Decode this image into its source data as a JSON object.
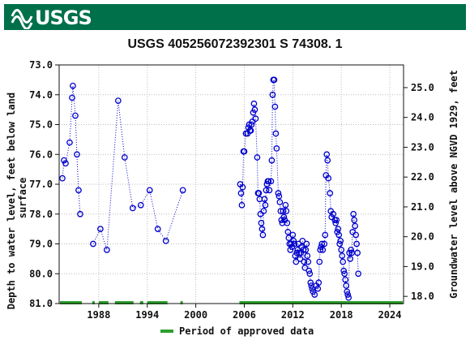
{
  "header": {
    "logo_text": "USGS",
    "brand_color": "#00704a"
  },
  "chart_data": {
    "type": "scatter",
    "title": "USGS 405256072392301 S 74308. 1",
    "ylabel_left": "Depth to water level, feet below land surface",
    "ylabel_left_lines": [
      "Depth to water level, feet below land",
      "surface"
    ],
    "ylabel_right": "Groundwater level above NGVD 1929, feet",
    "x_ticks": [
      "1988",
      "1994",
      "2000",
      "2006",
      "2012",
      "2018",
      "2024"
    ],
    "x_tick_values": [
      1988,
      1994,
      2000,
      2006,
      2012,
      2018,
      2024
    ],
    "xlim": [
      1983.1,
      2025.7
    ],
    "ylim_left": [
      73.0,
      81.0
    ],
    "y_ticks_left": [
      "73.0",
      "74.0",
      "75.0",
      "76.0",
      "77.0",
      "78.0",
      "79.0",
      "80.0",
      "81.0"
    ],
    "ylim_right": [
      25.5,
      17.5
    ],
    "y_ticks_right": [
      "25.0",
      "24.0",
      "23.0",
      "22.0",
      "21.0",
      "20.0",
      "19.0",
      "18.0"
    ],
    "right_axis_offset": 98.76,
    "grid": true,
    "marker_color": "#0000cc",
    "approved_color": "#2ca02c",
    "legend": {
      "label": "Period of approved data",
      "position": "bottom"
    },
    "series": [
      {
        "points": [
          [
            1983.5,
            76.8
          ],
          [
            1983.7,
            76.2
          ],
          [
            1983.9,
            76.3
          ],
          [
            1984.4,
            75.6
          ],
          [
            1984.7,
            74.1
          ],
          [
            1984.8,
            73.7
          ],
          [
            1985.1,
            74.7
          ],
          [
            1985.3,
            76.0
          ],
          [
            1985.5,
            77.2
          ],
          [
            1985.7,
            78.0
          ],
          [
            1987.3,
            79.0
          ],
          [
            1988.2,
            78.5
          ],
          [
            1989.0,
            79.2
          ],
          [
            1990.4,
            74.2
          ],
          [
            1991.2,
            76.1
          ],
          [
            1992.2,
            77.8
          ],
          [
            1993.2,
            77.7
          ],
          [
            1994.3,
            77.2
          ],
          [
            1995.3,
            78.5
          ],
          [
            1996.3,
            78.9
          ],
          [
            1998.4,
            77.2
          ],
          [
            2005.5,
            77.0
          ],
          [
            2005.6,
            77.3
          ],
          [
            2005.7,
            77.7
          ],
          [
            2005.8,
            77.1
          ],
          [
            2005.9,
            75.9
          ],
          [
            2006.0,
            75.9
          ],
          [
            2006.2,
            75.3
          ],
          [
            2006.4,
            75.3
          ],
          [
            2006.5,
            75.1
          ],
          [
            2006.6,
            75.0
          ],
          [
            2006.7,
            75.2
          ],
          [
            2006.8,
            75.2
          ],
          [
            2006.9,
            75.0
          ],
          [
            2007.0,
            74.9
          ],
          [
            2007.1,
            74.6
          ],
          [
            2007.2,
            74.3
          ],
          [
            2007.3,
            74.5
          ],
          [
            2007.4,
            74.8
          ],
          [
            2007.6,
            76.1
          ],
          [
            2007.7,
            77.3
          ],
          [
            2007.8,
            77.3
          ],
          [
            2007.9,
            77.5
          ],
          [
            2008.0,
            78.0
          ],
          [
            2008.1,
            78.3
          ],
          [
            2008.2,
            78.5
          ],
          [
            2008.3,
            78.7
          ],
          [
            2008.4,
            77.9
          ],
          [
            2008.5,
            77.5
          ],
          [
            2008.6,
            77.7
          ],
          [
            2008.7,
            77.2
          ],
          [
            2008.8,
            77.0
          ],
          [
            2008.9,
            76.9
          ],
          [
            2009.0,
            76.9
          ],
          [
            2009.1,
            77.2
          ],
          [
            2009.3,
            76.9
          ],
          [
            2009.4,
            76.2
          ],
          [
            2009.5,
            74.0
          ],
          [
            2009.6,
            73.5
          ],
          [
            2009.7,
            73.5
          ],
          [
            2009.8,
            74.4
          ],
          [
            2009.9,
            75.3
          ],
          [
            2010.0,
            75.8
          ],
          [
            2010.2,
            77.3
          ],
          [
            2010.3,
            77.4
          ],
          [
            2010.4,
            77.6
          ],
          [
            2010.5,
            77.9
          ],
          [
            2010.6,
            78.2
          ],
          [
            2010.7,
            78.3
          ],
          [
            2010.8,
            77.9
          ],
          [
            2010.9,
            78.1
          ],
          [
            2011.0,
            78.2
          ],
          [
            2011.1,
            77.7
          ],
          [
            2011.2,
            77.9
          ],
          [
            2011.3,
            78.3
          ],
          [
            2011.4,
            78.6
          ],
          [
            2011.5,
            78.8
          ],
          [
            2011.6,
            79.0
          ],
          [
            2011.7,
            79.2
          ],
          [
            2011.8,
            79.0
          ],
          [
            2011.9,
            79.1
          ],
          [
            2012.0,
            78.7
          ],
          [
            2012.1,
            78.9
          ],
          [
            2012.2,
            79.0
          ],
          [
            2012.3,
            79.4
          ],
          [
            2012.4,
            79.6
          ],
          [
            2012.5,
            79.3
          ],
          [
            2012.6,
            79.2
          ],
          [
            2012.7,
            79.0
          ],
          [
            2012.8,
            79.3
          ],
          [
            2012.9,
            79.5
          ],
          [
            2013.0,
            79.3
          ],
          [
            2013.1,
            79.1
          ],
          [
            2013.2,
            78.9
          ],
          [
            2013.3,
            79.2
          ],
          [
            2013.4,
            79.6
          ],
          [
            2013.5,
            79.8
          ],
          [
            2013.6,
            79.2
          ],
          [
            2013.7,
            79.0
          ],
          [
            2013.8,
            79.4
          ],
          [
            2013.9,
            79.6
          ],
          [
            2014.0,
            79.9
          ],
          [
            2014.1,
            80.0
          ],
          [
            2014.2,
            80.3
          ],
          [
            2014.3,
            80.4
          ],
          [
            2014.4,
            80.5
          ],
          [
            2014.5,
            80.6
          ],
          [
            2014.7,
            80.7
          ],
          [
            2014.9,
            80.4
          ],
          [
            2015.1,
            80.5
          ],
          [
            2015.2,
            80.3
          ],
          [
            2015.3,
            79.6
          ],
          [
            2015.4,
            79.2
          ],
          [
            2015.5,
            79.1
          ],
          [
            2015.6,
            79.0
          ],
          [
            2015.7,
            79.2
          ],
          [
            2015.9,
            79.0
          ],
          [
            2016.0,
            78.7
          ],
          [
            2016.1,
            76.7
          ],
          [
            2016.2,
            76.0
          ],
          [
            2016.3,
            76.2
          ],
          [
            2016.4,
            76.8
          ],
          [
            2016.6,
            77.3
          ],
          [
            2016.7,
            77.9
          ],
          [
            2016.8,
            78.1
          ],
          [
            2017.0,
            78.0
          ],
          [
            2017.2,
            78.2
          ],
          [
            2017.3,
            78.3
          ],
          [
            2017.4,
            78.2
          ],
          [
            2017.5,
            78.6
          ],
          [
            2017.6,
            78.5
          ],
          [
            2017.7,
            78.7
          ],
          [
            2017.8,
            79.0
          ],
          [
            2017.9,
            78.9
          ],
          [
            2018.0,
            79.2
          ],
          [
            2018.1,
            79.4
          ],
          [
            2018.2,
            79.6
          ],
          [
            2018.3,
            79.9
          ],
          [
            2018.4,
            80.0
          ],
          [
            2018.5,
            80.2
          ],
          [
            2018.6,
            80.4
          ],
          [
            2018.7,
            80.6
          ],
          [
            2018.8,
            80.7
          ],
          [
            2018.9,
            80.8
          ],
          [
            2019.0,
            79.3
          ],
          [
            2019.1,
            79.5
          ],
          [
            2019.2,
            79.2
          ],
          [
            2019.3,
            79.3
          ],
          [
            2019.4,
            78.6
          ],
          [
            2019.5,
            78.0
          ],
          [
            2019.6,
            78.2
          ],
          [
            2019.7,
            78.4
          ],
          [
            2019.8,
            78.7
          ],
          [
            2019.9,
            79.0
          ],
          [
            2020.0,
            79.3
          ],
          [
            2020.1,
            80.0
          ]
        ]
      }
    ],
    "approved_segments": [
      [
        1983.1,
        1985.9
      ],
      [
        1987.2,
        1987.5
      ],
      [
        1988.0,
        1989.2
      ],
      [
        1990.0,
        1992.3
      ],
      [
        1993.1,
        1993.5
      ],
      [
        1994.0,
        1996.5
      ],
      [
        1998.1,
        1998.4
      ],
      [
        2005.4,
        2025.7
      ]
    ]
  }
}
